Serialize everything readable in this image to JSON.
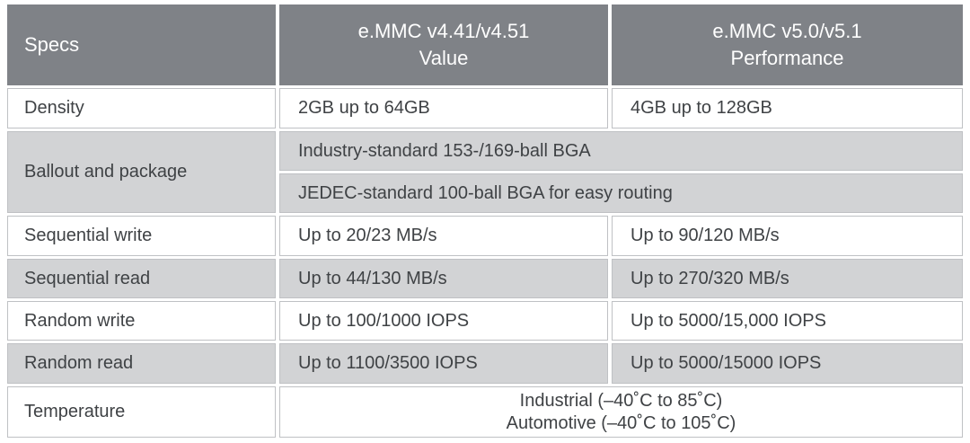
{
  "colors": {
    "header_bg": "#7f8287",
    "header_text": "#ffffff",
    "row_bg": "#ffffff",
    "row_alt_bg": "#d2d3d5",
    "text": "#3f4245",
    "border": "#bfc1c4"
  },
  "header": {
    "specs": "Specs",
    "col_value": {
      "line1": "e.MMC v4.41/v4.51",
      "line2": "Value"
    },
    "col_performance": {
      "line1": "e.MMC v5.0/v5.1",
      "line2": "Performance"
    }
  },
  "rows": {
    "density": {
      "label": "Density",
      "value": "2GB up to 64GB",
      "performance": "4GB up to 128GB"
    },
    "ballout": {
      "label": "Ballout and package",
      "line1": "Industry-standard 153-/169-ball BGA",
      "line2": "JEDEC-standard 100-ball BGA for easy routing"
    },
    "sequential_write": {
      "label": "Sequential write",
      "value": "Up to 20/23 MB/s",
      "performance": "Up to 90/120 MB/s"
    },
    "sequential_read": {
      "label": "Sequential read",
      "value": "Up to 44/130 MB/s",
      "performance": "Up to 270/320 MB/s"
    },
    "random_write": {
      "label": "Random write",
      "value": "Up to 100/1000 IOPS",
      "performance": "Up to 5000/15,000 IOPS"
    },
    "random_read": {
      "label": "Random read",
      "value": "Up to 1100/3500 IOPS",
      "performance": "Up to 5000/15000 IOPS"
    },
    "temperature": {
      "label": "Temperature",
      "line1": "Industrial (–40˚C to 85˚C)",
      "line2": "Automotive (–40˚C to 105˚C)"
    }
  }
}
